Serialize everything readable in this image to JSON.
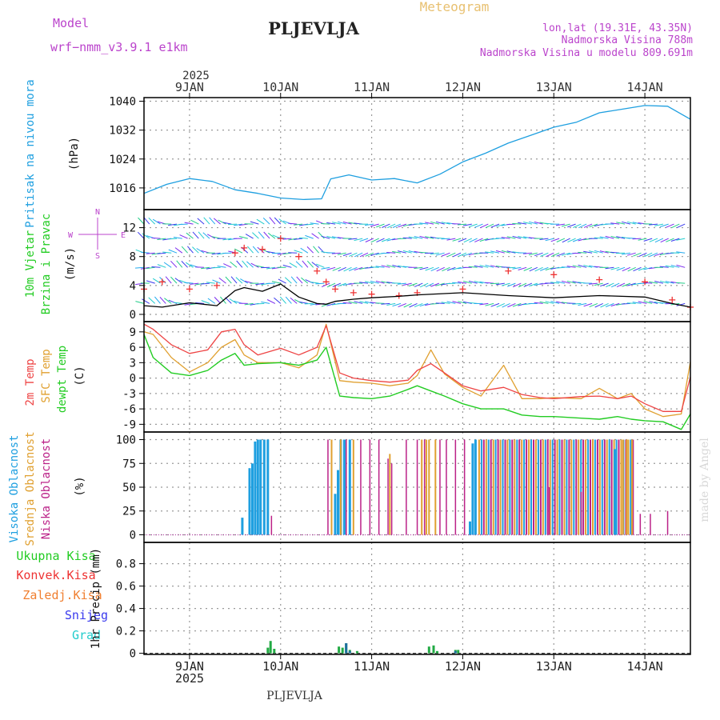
{
  "header": {
    "model_label": "Model",
    "model_name": "wrf−nmm_v3.9.1  e1km",
    "station": "PLJEVLJA",
    "meteogram_label": "Meteogram",
    "coords": "lon,lat (19.31E, 43.35N)",
    "elevation": "Nadmorska Visina 788m",
    "model_elevation": "Nadmorska Visina u modelu 809.691m"
  },
  "footer": {
    "station": "PLJEVLJA",
    "watermark": "made by Angel"
  },
  "colors": {
    "pressure": "#1e9fe0",
    "dewpoint": "#22cc22",
    "temp2m": "#ee4444",
    "sfc_temp": "#e0a030",
    "cloud_high": "#1e9fe0",
    "cloud_mid": "#e0a030",
    "cloud_low": "#bb2288",
    "title_magenta": "#bb44cc",
    "gust": "#ee3333"
  },
  "chart_data": [
    {
      "type": "line",
      "panel": "pressure",
      "ylabel": "Pritisak na nivou mora",
      "unit": "(hPa)",
      "y_ticks": [
        1016,
        1024,
        1032,
        1040
      ],
      "ylim": [
        1010,
        1041
      ],
      "x_day_labels": [
        "9JAN",
        "10JAN",
        "11JAN",
        "12JAN",
        "13JAN",
        "14JAN"
      ],
      "x_year_label": "2025",
      "x_days": [
        8.5,
        8.75,
        9.0,
        9.25,
        9.5,
        9.75,
        10.0,
        10.25,
        10.45,
        10.55,
        10.75,
        11.0,
        11.25,
        11.5,
        11.75,
        12.0,
        12.25,
        12.5,
        12.75,
        13.0,
        13.25,
        13.5,
        13.75,
        14.0,
        14.25,
        14.5
      ],
      "values": [
        1014.5,
        1017.0,
        1018.6,
        1017.8,
        1015.5,
        1014.5,
        1013.2,
        1012.8,
        1013.0,
        1018.5,
        1019.6,
        1018.2,
        1018.6,
        1017.4,
        1019.8,
        1023.2,
        1025.6,
        1028.4,
        1030.6,
        1032.8,
        1034.2,
        1036.8,
        1037.8,
        1038.8,
        1038.6,
        1035.0
      ]
    },
    {
      "type": "line",
      "panel": "wind",
      "ylabel_1": "10m Vjetar",
      "ylabel_2": "Brzina i Pravac",
      "unit": "(m/s)",
      "compass": [
        "N",
        "S",
        "W",
        "E"
      ],
      "y_ticks": [
        0,
        4,
        8,
        12
      ],
      "ylim": [
        -1,
        14.5
      ],
      "x_days": [
        8.5,
        8.7,
        9.0,
        9.3,
        9.5,
        9.6,
        9.8,
        10.0,
        10.2,
        10.4,
        10.5,
        10.6,
        10.8,
        11.0,
        11.3,
        11.5,
        12.0,
        12.5,
        13.0,
        13.5,
        14.0,
        14.3,
        14.5
      ],
      "wind_speed": [
        1.2,
        1.0,
        1.6,
        1.2,
        3.3,
        3.7,
        3.2,
        4.2,
        2.4,
        1.5,
        1.4,
        1.8,
        2.1,
        2.3,
        2.5,
        2.7,
        3.0,
        2.6,
        2.3,
        2.6,
        2.4,
        1.5,
        1.0
      ],
      "gust_speed": [
        3.5,
        4.5,
        3.5,
        4.0,
        8.5,
        9.2,
        9.0,
        10.5,
        8.0,
        6.0,
        4.5,
        3.5,
        3.0,
        2.8,
        2.6,
        3.0,
        3.5,
        6.0,
        5.5,
        4.8,
        4.5,
        2.0,
        1.0
      ]
    },
    {
      "type": "line",
      "panel": "temperature",
      "ylabel_1": "2m Temp",
      "ylabel_2": "SFC Temp",
      "ylabel_3": "dewpt Temp",
      "unit": "(C)",
      "y_ticks": [
        -9,
        -6,
        -3,
        0,
        3,
        6,
        9
      ],
      "ylim": [
        -10.5,
        11
      ],
      "x_days": [
        8.5,
        8.6,
        8.8,
        9.0,
        9.2,
        9.35,
        9.5,
        9.6,
        9.75,
        10.0,
        10.2,
        10.4,
        10.5,
        10.65,
        10.8,
        11.0,
        11.2,
        11.4,
        11.5,
        11.65,
        11.8,
        12.0,
        12.2,
        12.45,
        12.65,
        12.85,
        13.0,
        13.3,
        13.5,
        13.7,
        13.85,
        14.0,
        14.2,
        14.4,
        14.5
      ],
      "temp_2m": [
        10.5,
        9.5,
        6.5,
        4.8,
        5.5,
        9.0,
        9.5,
        6.5,
        4.5,
        5.8,
        4.5,
        6.0,
        10.2,
        1.0,
        0.0,
        -0.5,
        -0.8,
        -0.4,
        1.5,
        2.8,
        1.0,
        -1.5,
        -2.5,
        -1.8,
        -3.2,
        -3.8,
        -4.0,
        -3.6,
        -3.5,
        -4.0,
        -3.5,
        -5.0,
        -6.5,
        -6.5,
        0.2
      ],
      "sfc_temp": [
        9.0,
        8.5,
        4.0,
        1.2,
        3.0,
        6.0,
        7.5,
        4.5,
        3.0,
        3.0,
        2.0,
        4.5,
        10.5,
        -0.5,
        -0.8,
        -1.0,
        -1.5,
        -1.0,
        0.5,
        5.5,
        0.8,
        -1.8,
        -3.5,
        2.5,
        -4.0,
        -4.0,
        -3.8,
        -4.0,
        -2.0,
        -4.0,
        -3.0,
        -6.0,
        -7.5,
        -7.0,
        3.2
      ],
      "dewpoint": [
        8.5,
        4.0,
        1.0,
        0.5,
        1.5,
        3.5,
        4.8,
        2.5,
        2.8,
        3.0,
        2.5,
        3.5,
        6.0,
        -3.5,
        -3.8,
        -4.0,
        -3.5,
        -2.2,
        -1.5,
        -2.5,
        -3.5,
        -5.0,
        -6.0,
        -6.0,
        -7.2,
        -7.5,
        -7.5,
        -7.8,
        -8.0,
        -7.5,
        -8.0,
        -8.3,
        -8.5,
        -10.0,
        -7.0
      ]
    },
    {
      "type": "bar",
      "panel": "clouds",
      "ylabel_1": "Visoka Oblacnost",
      "ylabel_2": "Srednja Oblacnost",
      "ylabel_3": "Niska Oblacnost",
      "unit": "(%)",
      "y_ticks": [
        0,
        25,
        50,
        75,
        100
      ],
      "ylim": [
        -8,
        108
      ],
      "high_cloud": [
        {
          "day": 9.58,
          "value": 18
        },
        {
          "day": 9.66,
          "value": 70
        },
        {
          "day": 9.69,
          "value": 75
        },
        {
          "day": 9.72,
          "value": 98
        },
        {
          "day": 9.75,
          "value": 100
        },
        {
          "day": 9.78,
          "value": 100
        },
        {
          "day": 9.82,
          "value": 100
        },
        {
          "day": 9.86,
          "value": 100
        },
        {
          "day": 10.6,
          "value": 43
        },
        {
          "day": 10.63,
          "value": 68
        },
        {
          "day": 10.66,
          "value": 100
        },
        {
          "day": 10.7,
          "value": 100
        },
        {
          "day": 10.76,
          "value": 100
        },
        {
          "day": 12.08,
          "value": 14
        },
        {
          "day": 12.11,
          "value": 96
        },
        {
          "day": 12.14,
          "value": 100
        },
        {
          "day": 13.67,
          "value": 90
        }
      ],
      "mid_cloud": [
        {
          "day": 10.56,
          "value": 100
        },
        {
          "day": 10.66,
          "value": 100
        },
        {
          "day": 10.8,
          "value": 100
        },
        {
          "day": 11.2,
          "value": 85
        },
        {
          "day": 11.55,
          "value": 100
        },
        {
          "day": 11.6,
          "value": 100
        },
        {
          "day": 11.63,
          "value": 100
        },
        {
          "day": 11.7,
          "value": 100
        },
        {
          "day": 13.76,
          "value": 100
        },
        {
          "day": 13.8,
          "value": 100
        },
        {
          "day": 13.86,
          "value": 100
        }
      ],
      "low_cloud": [
        {
          "day": 9.9,
          "value": 20
        },
        {
          "day": 10.52,
          "value": 100
        },
        {
          "day": 10.72,
          "value": 100
        },
        {
          "day": 10.88,
          "value": 100
        },
        {
          "day": 10.98,
          "value": 100
        },
        {
          "day": 11.08,
          "value": 100
        },
        {
          "day": 11.18,
          "value": 80
        },
        {
          "day": 11.22,
          "value": 75
        },
        {
          "day": 11.38,
          "value": 100
        },
        {
          "day": 11.5,
          "value": 100
        },
        {
          "day": 11.58,
          "value": 100
        },
        {
          "day": 11.75,
          "value": 100
        },
        {
          "day": 11.82,
          "value": 100
        },
        {
          "day": 11.92,
          "value": 100
        },
        {
          "day": 12.02,
          "value": 100
        },
        {
          "day": 12.95,
          "value": 50
        },
        {
          "day": 13.3,
          "value": 45
        },
        {
          "day": 13.95,
          "value": 22
        },
        {
          "day": 14.06,
          "value": 22
        },
        {
          "day": 14.25,
          "value": 25
        }
      ],
      "dense_block_days": [
        12.18,
        13.88
      ],
      "dense_block_value": 100
    },
    {
      "type": "bar",
      "panel": "precipitation",
      "legend": [
        "Ukupna  Kisa",
        "Konvek.Kisa",
        "Zaledj.Kisa",
        "Snijeg",
        "Grad"
      ],
      "legend_colors": [
        "#22cc22",
        "#ee3333",
        "#f07f30",
        "#3a3aee",
        "#22cccc"
      ],
      "ylabel": "1hr Precip (mm)",
      "y_ticks": [
        0,
        0.2,
        0.4,
        0.6,
        0.8
      ],
      "ylim": [
        -0.01,
        0.99
      ],
      "total": [
        {
          "day": 9.86,
          "value": 0.05
        },
        {
          "day": 9.89,
          "value": 0.11
        },
        {
          "day": 9.93,
          "value": 0.04
        },
        {
          "day": 10.64,
          "value": 0.06
        },
        {
          "day": 10.68,
          "value": 0.05
        },
        {
          "day": 10.72,
          "value": 0.09
        },
        {
          "day": 10.76,
          "value": 0.03
        },
        {
          "day": 10.84,
          "value": 0.02
        },
        {
          "day": 11.63,
          "value": 0.06
        },
        {
          "day": 11.68,
          "value": 0.07
        },
        {
          "day": 11.72,
          "value": 0.02
        },
        {
          "day": 11.92,
          "value": 0.03
        },
        {
          "day": 11.95,
          "value": 0.03
        }
      ],
      "snow": [
        {
          "day": 10.72,
          "value": 0.09
        },
        {
          "day": 10.76,
          "value": 0.02
        },
        {
          "day": 11.92,
          "value": 0.02
        }
      ]
    }
  ]
}
